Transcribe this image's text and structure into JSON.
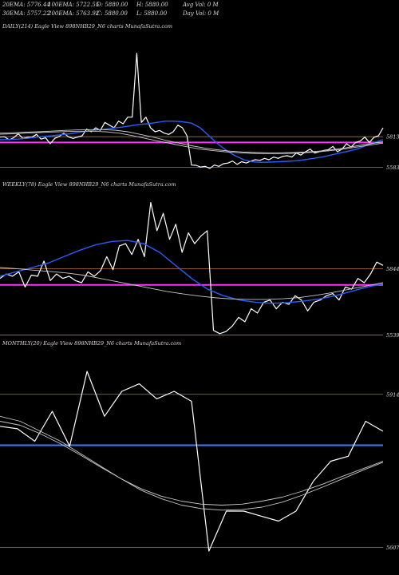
{
  "header": {
    "row1": [
      "20EMA: 5776.44",
      "100EMA: 5722.55",
      "O: 5880.00",
      "H: 5880.00",
      "Avg Vol: 0  M"
    ],
    "row2": [
      "30EMA: 5757.22",
      "200EMA: 5763.92",
      "C: 5880.00",
      "L: 5880.00",
      "Day Vol: 0  M"
    ]
  },
  "colors": {
    "background": "#000000",
    "price": "#ffffff",
    "ema_fast": "#2a5cff",
    "ema_slow": "#c8c8c8",
    "level_magenta": "#ff33ff",
    "level_orange": "#b87333",
    "level_blue": "#3a7bff"
  },
  "chart_data": [
    {
      "type": "line",
      "title": "DAILY(214) Eagle  View  898NHB29_N6  charts MunafaSutra.com",
      "ytick_labels": [
        "5813",
        "5583"
      ],
      "ylim": [
        5550,
        6600
      ],
      "level_lines": [
        5813,
        5770,
        5583
      ],
      "series": [
        {
          "role": "price",
          "values": [
            5810,
            5812,
            5790,
            5805,
            5835,
            5800,
            5808,
            5810,
            5830,
            5795,
            5805,
            5760,
            5800,
            5815,
            5840,
            5812,
            5800,
            5810,
            5820,
            5870,
            5850,
            5880,
            5860,
            5920,
            5900,
            5880,
            5930,
            5910,
            5960,
            5960,
            6440,
            5920,
            5960,
            5880,
            5850,
            5860,
            5840,
            5830,
            5850,
            5900,
            5880,
            5820,
            5600,
            5598,
            5585,
            5590,
            5575,
            5600,
            5590,
            5610,
            5615,
            5630,
            5605,
            5625,
            5615,
            5630,
            5640,
            5635,
            5650,
            5640,
            5660,
            5650,
            5665,
            5670,
            5660,
            5690,
            5675,
            5700,
            5720,
            5690,
            5700,
            5710,
            5715,
            5740,
            5700,
            5720,
            5760,
            5735,
            5770,
            5780,
            5810,
            5770,
            5808,
            5820,
            5880
          ]
        },
        {
          "role": "ema_fast",
          "values": [
            5790,
            5792,
            5795,
            5800,
            5808,
            5815,
            5820,
            5828,
            5835,
            5845,
            5855,
            5862,
            5870,
            5878,
            5885,
            5895,
            5905,
            5910,
            5920,
            5930,
            5930,
            5925,
            5915,
            5880,
            5820,
            5760,
            5710,
            5670,
            5640,
            5625,
            5620,
            5622,
            5625,
            5628,
            5632,
            5640,
            5650,
            5660,
            5675,
            5690,
            5705,
            5720,
            5745,
            5770,
            5790
          ]
        },
        {
          "role": "ema_slow",
          "values": [
            5840,
            5843,
            5847,
            5850,
            5855,
            5860,
            5864,
            5866,
            5866,
            5862,
            5850,
            5830,
            5810,
            5785,
            5765,
            5745,
            5728,
            5715,
            5705,
            5698,
            5694,
            5692,
            5692,
            5694,
            5698,
            5705,
            5715,
            5728,
            5745,
            5760,
            5775
          ]
        },
        {
          "role": "ema_slow_2",
          "values": [
            5832,
            5835,
            5840,
            5844,
            5848,
            5852,
            5854,
            5854,
            5850,
            5840,
            5822,
            5800,
            5780,
            5760,
            5740,
            5722,
            5710,
            5700,
            5693,
            5688,
            5686,
            5686,
            5688,
            5692,
            5698,
            5708,
            5720,
            5735,
            5750,
            5765
          ]
        }
      ]
    },
    {
      "type": "line",
      "title": "WEEKLY(78) Eagle  View  898NHB29_N6  charts MunafaSutra.com",
      "ytick_labels": [
        "5844",
        "5539"
      ],
      "ylim": [
        5500,
        6200
      ],
      "level_lines": [
        5844,
        5770,
        5539
      ],
      "series": [
        {
          "role": "price",
          "values": [
            5800,
            5820,
            5810,
            5830,
            5760,
            5815,
            5810,
            5880,
            5790,
            5820,
            5800,
            5810,
            5790,
            5780,
            5830,
            5810,
            5835,
            5900,
            5840,
            5950,
            5960,
            5910,
            5980,
            5900,
            6150,
            6020,
            6100,
            5980,
            6050,
            5920,
            6010,
            5960,
            5995,
            6020,
            5560,
            5545,
            5555,
            5580,
            5620,
            5600,
            5660,
            5640,
            5690,
            5700,
            5660,
            5690,
            5680,
            5720,
            5700,
            5650,
            5690,
            5700,
            5720,
            5730,
            5700,
            5760,
            5750,
            5800,
            5780,
            5820,
            5875,
            5860
          ]
        },
        {
          "role": "ema_fast",
          "values": [
            5810,
            5830,
            5850,
            5870,
            5900,
            5930,
            5955,
            5970,
            5975,
            5960,
            5920,
            5860,
            5800,
            5750,
            5720,
            5700,
            5690,
            5685,
            5688,
            5695,
            5705,
            5720,
            5740,
            5760,
            5775
          ]
        },
        {
          "role": "ema_slow",
          "values": [
            5850,
            5845,
            5838,
            5832,
            5825,
            5815,
            5800,
            5785,
            5770,
            5755,
            5740,
            5728,
            5718,
            5710,
            5705,
            5703,
            5703,
            5706,
            5712,
            5722,
            5735,
            5750,
            5765,
            5780
          ]
        }
      ]
    },
    {
      "type": "line",
      "title": "MONTHLY(20) Eagle  View  898NHB29_N6  charts MunafaSutra.com",
      "ytick_labels": [
        "5914",
        "5607"
      ],
      "ylim": [
        5560,
        6000
      ],
      "level_lines": [
        5914,
        5812,
        5607
      ],
      "series": [
        {
          "role": "price",
          "values": [
            5850,
            5845,
            5820,
            5880,
            5810,
            5960,
            5870,
            5920,
            5935,
            5905,
            5920,
            5900,
            5600,
            5680,
            5680,
            5670,
            5660,
            5680,
            5740,
            5780,
            5790,
            5860,
            5840
          ]
        },
        {
          "role": "ema_slow",
          "values": [
            5870,
            5860,
            5840,
            5820,
            5795,
            5770,
            5745,
            5722,
            5705,
            5692,
            5685,
            5682,
            5683,
            5688,
            5698,
            5712,
            5728,
            5745,
            5762,
            5778
          ]
        },
        {
          "role": "ema_slow_2",
          "values": [
            5860,
            5852,
            5835,
            5815,
            5792,
            5768,
            5745,
            5725,
            5710,
            5700,
            5694,
            5692,
            5694,
            5700,
            5708,
            5720,
            5734,
            5750,
            5765,
            5780
          ]
        }
      ]
    }
  ]
}
